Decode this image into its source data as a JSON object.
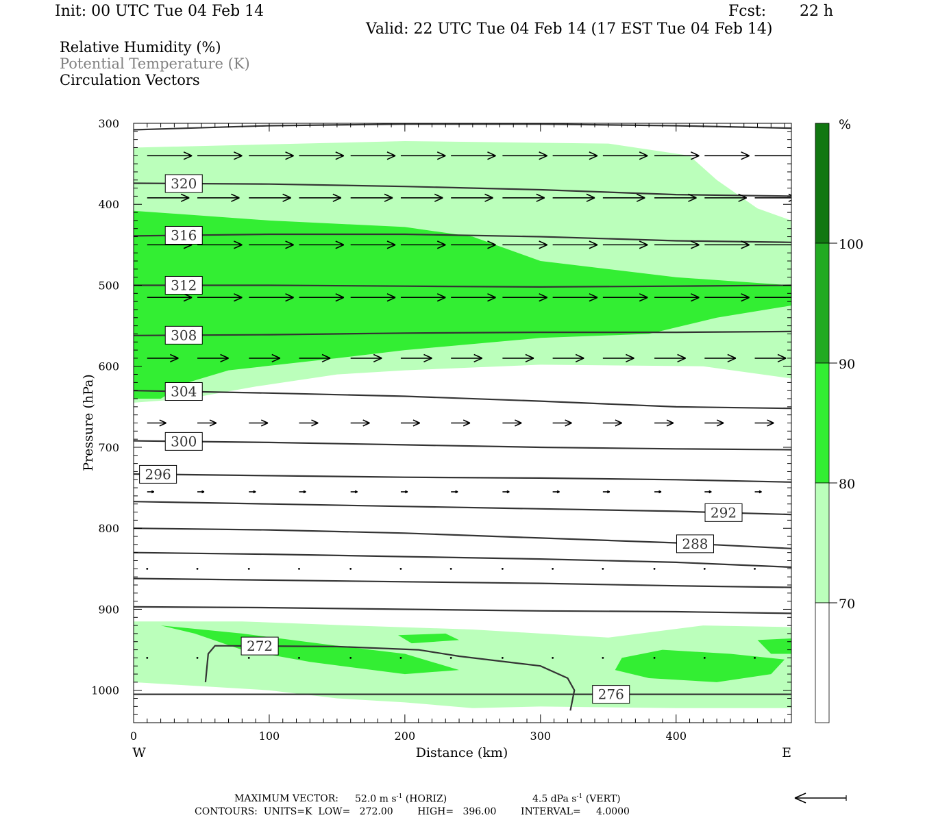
{
  "header": {
    "init": "Init: 00 UTC Tue 04 Feb 14",
    "fcst_label": "Fcst:",
    "fcst_value": "22 h",
    "valid": "Valid: 22 UTC Tue 04 Feb 14 (17 EST Tue 04 Feb 14)"
  },
  "legend": {
    "line1": "Relative Humidity (%)",
    "line2": "Potential Temperature (K)",
    "line3": "Circulation Vectors"
  },
  "colorbar": {
    "unit": "%",
    "levels": [
      "70",
      "80",
      "90",
      "100"
    ],
    "colors": [
      "#ffffff",
      "#bbffbb",
      "#33ee33",
      "#22aa22",
      "#117711"
    ]
  },
  "footer": {
    "maxvec_label": "MAXIMUM VECTOR:",
    "horiz_value": "52.0 m s",
    "horiz_exp": "-1",
    "horiz_tag": "(HORIZ)",
    "vert_value": "4.5 dPa s",
    "vert_exp": "-1",
    "vert_tag": "(VERT)",
    "contours": "CONTOURS:  UNITS=K  LOW=   272.00        HIGH=   396.00        INTERVAL=     4.0000"
  },
  "chart_data": {
    "type": "cross-section",
    "xlabel": "Distance (km)",
    "ylabel": "Pressure (hPa)",
    "x_ticks": [
      "0",
      "100",
      "200",
      "300",
      "400"
    ],
    "x_tick_values": [
      0,
      100,
      200,
      300,
      400
    ],
    "y_ticks": [
      "300",
      "400",
      "500",
      "600",
      "700",
      "800",
      "900",
      "1000"
    ],
    "y_tick_values": [
      300,
      400,
      500,
      600,
      700,
      800,
      900,
      1000
    ],
    "xlim": [
      0,
      485
    ],
    "ylim": [
      300,
      1040
    ],
    "y_inverted": true,
    "x_end_labels": {
      "left": "W",
      "right": "E"
    },
    "isentropes": [
      {
        "theta": 272,
        "label": "272",
        "label_x": 93,
        "points": [
          [
            53,
            990
          ],
          [
            55,
            955
          ],
          [
            60,
            945
          ],
          [
            150,
            946
          ],
          [
            210,
            950
          ],
          [
            240,
            958
          ],
          [
            300,
            970
          ],
          [
            320,
            985
          ],
          [
            325,
            1000
          ],
          [
            322,
            1025
          ]
        ]
      },
      {
        "theta": 276,
        "label": "276",
        "label_x": 352,
        "points": [
          [
            0,
            1005
          ],
          [
            100,
            1005
          ],
          [
            200,
            1005
          ],
          [
            300,
            1005
          ],
          [
            400,
            1005
          ],
          [
            485,
            1005
          ]
        ]
      },
      {
        "theta": 276,
        "label": "",
        "label_x": null,
        "points": [
          [
            0,
            897
          ],
          [
            100,
            898
          ],
          [
            200,
            900
          ],
          [
            300,
            902
          ],
          [
            400,
            903
          ],
          [
            485,
            905
          ]
        ]
      },
      {
        "theta": 280,
        "label": "",
        "label_x": null,
        "points": [
          [
            0,
            862
          ],
          [
            100,
            864
          ],
          [
            200,
            866
          ],
          [
            300,
            868
          ],
          [
            400,
            871
          ],
          [
            485,
            873
          ]
        ]
      },
      {
        "theta": 284,
        "label": "",
        "label_x": null,
        "points": [
          [
            0,
            830
          ],
          [
            100,
            832
          ],
          [
            200,
            835
          ],
          [
            300,
            838
          ],
          [
            400,
            842
          ],
          [
            485,
            848
          ]
        ]
      },
      {
        "theta": 288,
        "label": "288",
        "label_x": 414,
        "points": [
          [
            0,
            800
          ],
          [
            100,
            802
          ],
          [
            200,
            806
          ],
          [
            300,
            812
          ],
          [
            400,
            818
          ],
          [
            485,
            825
          ]
        ]
      },
      {
        "theta": 292,
        "label": "292",
        "label_x": 435,
        "points": [
          [
            0,
            767
          ],
          [
            100,
            770
          ],
          [
            200,
            773
          ],
          [
            300,
            776
          ],
          [
            400,
            779
          ],
          [
            485,
            783
          ]
        ]
      },
      {
        "theta": 296,
        "label": "296",
        "label_x": 18,
        "points": [
          [
            0,
            733
          ],
          [
            100,
            735
          ],
          [
            200,
            737
          ],
          [
            300,
            738
          ],
          [
            400,
            740
          ],
          [
            485,
            743
          ]
        ]
      },
      {
        "theta": 300,
        "label": "300",
        "label_x": 37,
        "points": [
          [
            0,
            692
          ],
          [
            100,
            694
          ],
          [
            200,
            697
          ],
          [
            300,
            700
          ],
          [
            400,
            702
          ],
          [
            485,
            703
          ]
        ]
      },
      {
        "theta": 304,
        "label": "304",
        "label_x": 37,
        "points": [
          [
            0,
            630
          ],
          [
            100,
            633
          ],
          [
            200,
            637
          ],
          [
            300,
            643
          ],
          [
            400,
            650
          ],
          [
            485,
            652
          ]
        ]
      },
      {
        "theta": 308,
        "label": "308",
        "label_x": 37,
        "points": [
          [
            0,
            562
          ],
          [
            100,
            561
          ],
          [
            200,
            559
          ],
          [
            300,
            558
          ],
          [
            400,
            558
          ],
          [
            485,
            557
          ]
        ]
      },
      {
        "theta": 312,
        "label": "312",
        "label_x": 37,
        "points": [
          [
            0,
            500
          ],
          [
            100,
            500
          ],
          [
            200,
            501
          ],
          [
            300,
            502
          ],
          [
            400,
            501
          ],
          [
            485,
            500
          ]
        ]
      },
      {
        "theta": 316,
        "label": "316",
        "label_x": 37,
        "points": [
          [
            0,
            439
          ],
          [
            100,
            437
          ],
          [
            200,
            437
          ],
          [
            300,
            440
          ],
          [
            400,
            445
          ],
          [
            485,
            447
          ]
        ]
      },
      {
        "theta": 320,
        "label": "320",
        "label_x": 37,
        "points": [
          [
            0,
            374
          ],
          [
            100,
            375
          ],
          [
            200,
            378
          ],
          [
            300,
            382
          ],
          [
            400,
            388
          ],
          [
            485,
            390
          ]
        ]
      },
      {
        "theta": 324,
        "label": "",
        "label_x": null,
        "points": [
          [
            0,
            308
          ],
          [
            100,
            303
          ],
          [
            200,
            301
          ],
          [
            300,
            301
          ],
          [
            400,
            303
          ],
          [
            485,
            306
          ]
        ]
      }
    ],
    "rh_regions": [
      {
        "rh_min": 70,
        "points": [
          [
            0,
            330
          ],
          [
            200,
            322
          ],
          [
            350,
            325
          ],
          [
            410,
            340
          ],
          [
            430,
            370
          ],
          [
            460,
            405
          ],
          [
            485,
            420
          ],
          [
            485,
            615
          ],
          [
            420,
            600
          ],
          [
            300,
            598
          ],
          [
            200,
            605
          ],
          [
            150,
            610
          ],
          [
            90,
            625
          ],
          [
            40,
            640
          ],
          [
            0,
            645
          ]
        ]
      },
      {
        "rh_min": 80,
        "points": [
          [
            0,
            408
          ],
          [
            100,
            420
          ],
          [
            200,
            428
          ],
          [
            250,
            440
          ],
          [
            300,
            470
          ],
          [
            400,
            490
          ],
          [
            485,
            500
          ],
          [
            485,
            525
          ],
          [
            430,
            540
          ],
          [
            380,
            560
          ],
          [
            300,
            565
          ],
          [
            200,
            580
          ],
          [
            150,
            590
          ],
          [
            70,
            605
          ],
          [
            40,
            620
          ],
          [
            20,
            640
          ],
          [
            0,
            640
          ]
        ]
      },
      {
        "rh_min": 70,
        "points": [
          [
            0,
            915
          ],
          [
            80,
            915
          ],
          [
            160,
            920
          ],
          [
            250,
            925
          ],
          [
            350,
            935
          ],
          [
            420,
            920
          ],
          [
            485,
            922
          ],
          [
            485,
            1022
          ],
          [
            400,
            1022
          ],
          [
            300,
            1020
          ],
          [
            250,
            1022
          ],
          [
            200,
            1015
          ],
          [
            150,
            1010
          ],
          [
            100,
            1000
          ],
          [
            50,
            995
          ],
          [
            0,
            990
          ]
        ]
      },
      {
        "rh_min": 80,
        "points": [
          [
            20,
            920
          ],
          [
            80,
            930
          ],
          [
            150,
            945
          ],
          [
            200,
            955
          ],
          [
            240,
            975
          ],
          [
            200,
            980
          ],
          [
            130,
            965
          ],
          [
            80,
            950
          ],
          [
            45,
            930
          ]
        ]
      },
      {
        "rh_min": 80,
        "points": [
          [
            360,
            960
          ],
          [
            390,
            950
          ],
          [
            440,
            955
          ],
          [
            480,
            962
          ],
          [
            470,
            980
          ],
          [
            430,
            990
          ],
          [
            380,
            985
          ],
          [
            355,
            975
          ]
        ]
      },
      {
        "rh_min": 80,
        "points": [
          [
            195,
            932
          ],
          [
            230,
            930
          ],
          [
            240,
            938
          ],
          [
            205,
            942
          ]
        ]
      },
      {
        "rh_min": 80,
        "points": [
          [
            460,
            938
          ],
          [
            485,
            936
          ],
          [
            485,
            955
          ],
          [
            470,
            955
          ]
        ]
      }
    ],
    "vector_rows": [
      {
        "pressure": 340,
        "length_km": 33,
        "xs": [
          10,
          47,
          85,
          122,
          160,
          197,
          234,
          272,
          309,
          346,
          384,
          421,
          458
        ]
      },
      {
        "pressure": 392,
        "length_km": 31,
        "xs": [
          10,
          47,
          85,
          122,
          160,
          197,
          234,
          272,
          309,
          346,
          384,
          421,
          458
        ]
      },
      {
        "pressure": 450,
        "length_km": 33,
        "xs": [
          10,
          47,
          85,
          122,
          160,
          197,
          234,
          272,
          309,
          346,
          384,
          421,
          458
        ]
      },
      {
        "pressure": 515,
        "length_km": 33,
        "xs": [
          10,
          47,
          85,
          122,
          160,
          197,
          234,
          272,
          309,
          346,
          384,
          421,
          458
        ]
      },
      {
        "pressure": 590,
        "length_km": 23,
        "xs": [
          10,
          47,
          85,
          122,
          160,
          197,
          234,
          272,
          309,
          346,
          384,
          421,
          458
        ]
      },
      {
        "pressure": 670,
        "length_km": 14,
        "xs": [
          10,
          47,
          85,
          122,
          160,
          197,
          234,
          272,
          309,
          346,
          384,
          421,
          458
        ]
      },
      {
        "pressure": 755,
        "length_km": 5,
        "xs": [
          10,
          47,
          85,
          122,
          160,
          197,
          234,
          272,
          309,
          346,
          384,
          421,
          458
        ]
      },
      {
        "pressure": 850,
        "length_km": 1,
        "xs": [
          10,
          47,
          85,
          122,
          160,
          197,
          234,
          272,
          309,
          346,
          384,
          421,
          458
        ]
      },
      {
        "pressure": 960,
        "length_km": 1,
        "xs": [
          10,
          47,
          85,
          122,
          160,
          197,
          234,
          272,
          309,
          346,
          384,
          421,
          458
        ]
      }
    ]
  }
}
